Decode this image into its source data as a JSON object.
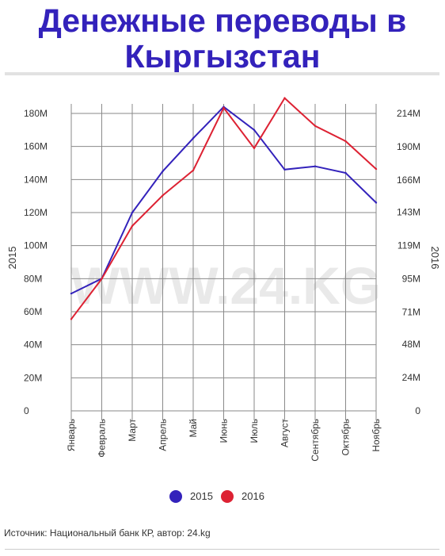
{
  "title": {
    "line1": "Денежные переводы в",
    "line2": "Кыргызстан"
  },
  "watermark": "WWW.24.KG",
  "source": "Источник: Национальный банк КР, автор: 24.kg",
  "colors": {
    "title": "#3322bb",
    "series_2015": "#3322bb",
    "series_2016": "#dd2233",
    "grid": "#8a8a8a"
  },
  "chart_data": {
    "type": "line",
    "categories": [
      "Январь",
      "Февраль",
      "Март",
      "Апрель",
      "Май",
      "Июнь",
      "Июль",
      "Август",
      "Сентябрь",
      "Октябрь",
      "Ноябрь"
    ],
    "series": [
      {
        "name": "2015",
        "axis": "left",
        "values": [
          71,
          80,
          120,
          145,
          165,
          184,
          170,
          146,
          148,
          144,
          126
        ]
      },
      {
        "name": "2016",
        "axis": "right",
        "values": [
          66,
          95,
          133,
          155,
          173,
          218,
          189,
          225,
          205,
          194,
          174
        ]
      }
    ],
    "y_left": {
      "label": "2015",
      "ylim": [
        0,
        180
      ],
      "ticks": [
        0,
        20,
        40,
        60,
        80,
        100,
        120,
        140,
        160,
        180
      ],
      "tick_labels": [
        "0",
        "20M",
        "40M",
        "60M",
        "80M",
        "100M",
        "120M",
        "140M",
        "160M",
        "180M"
      ]
    },
    "y_right": {
      "label": "2016",
      "ylim": [
        0,
        214
      ],
      "ticks": [
        0,
        24,
        48,
        71,
        95,
        119,
        143,
        166,
        190,
        214
      ],
      "tick_labels": [
        "0",
        "24M",
        "48M",
        "71M",
        "95M",
        "119M",
        "143M",
        "166M",
        "190M",
        "214M"
      ]
    },
    "legend": {
      "position": "bottom",
      "entries": [
        "2015",
        "2016"
      ]
    },
    "grid": true
  }
}
